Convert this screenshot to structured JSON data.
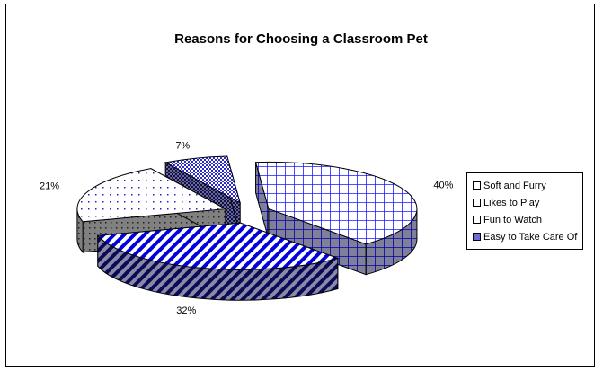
{
  "chart_data": {
    "type": "pie",
    "style": "3d-exploded",
    "title": "Reasons for Choosing a Classroom Pet",
    "categories": [
      "Soft and Furry",
      "Likes to Play",
      "Fun to Watch",
      "Easy to Take Care Of"
    ],
    "values": [
      40,
      32,
      21,
      7
    ],
    "value_labels": [
      "40%",
      "32%",
      "21%",
      "7%"
    ],
    "colors": [
      "#1a1aff",
      "#0000cc",
      "#ffffff",
      "#3333cc"
    ],
    "patterns": [
      "grid",
      "diagonal-stripes",
      "dots",
      "checker"
    ],
    "legend_position": "right"
  }
}
